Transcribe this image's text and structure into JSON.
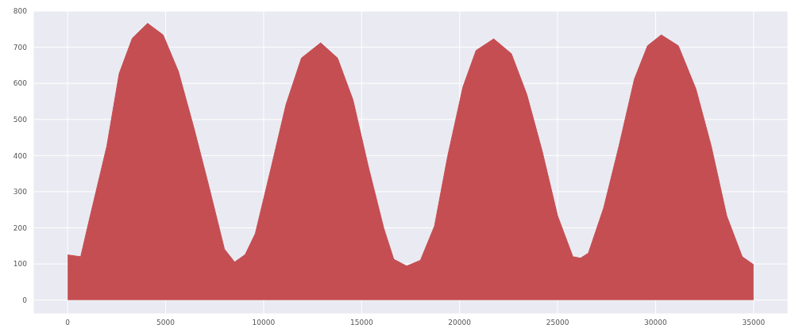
{
  "chart_data": {
    "type": "area",
    "x": [
      0,
      667,
      1060,
      2000,
      2630,
      3300,
      4080,
      4870,
      5650,
      6440,
      7220,
      8000,
      8520,
      9060,
      9575,
      10360,
      11140,
      11930,
      12910,
      13770,
      14560,
      15340,
      16130,
      16640,
      17300,
      18000,
      18720,
      19390,
      20170,
      20840,
      21740,
      22640,
      23430,
      24210,
      25000,
      25780,
      26170,
      26570,
      27350,
      28130,
      28920,
      29590,
      30290,
      31160,
      32060,
      32840,
      33630,
      34420,
      35000
    ],
    "values": [
      125,
      120,
      212,
      426,
      627,
      725,
      766,
      734,
      633,
      477,
      312,
      141,
      105,
      126,
      184,
      361,
      541,
      670,
      712,
      670,
      554,
      370,
      199,
      113,
      94,
      110,
      205,
      398,
      590,
      691,
      723,
      682,
      569,
      413,
      233,
      120,
      116,
      130,
      255,
      426,
      612,
      704,
      734,
      704,
      584,
      426,
      233,
      120,
      98
    ],
    "color": "#c44e52",
    "xlim": [
      -1750,
      36750
    ],
    "ylim": [
      -38,
      800
    ],
    "xticks": [
      0,
      5000,
      10000,
      15000,
      20000,
      25000,
      30000,
      35000
    ],
    "yticks": [
      0,
      100,
      200,
      300,
      400,
      500,
      600,
      700,
      800
    ],
    "grid": true
  }
}
